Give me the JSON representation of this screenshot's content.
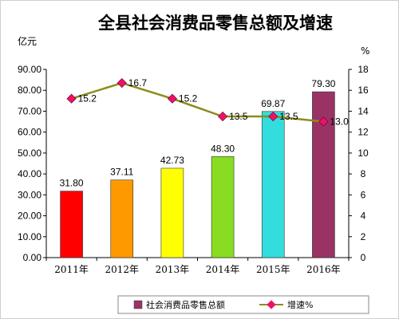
{
  "chart_data": {
    "type": "bar",
    "title": "全县社会消费品零售总额及增速",
    "categories": [
      "2011年",
      "2012年",
      "2013年",
      "2014年",
      "2015年",
      "2016年"
    ],
    "series": [
      {
        "name": "社会消费品零售总额",
        "type": "bar",
        "axis": "left",
        "values": [
          31.8,
          37.11,
          42.73,
          48.3,
          69.87,
          79.3
        ],
        "labels": [
          "31.80",
          "37.11",
          "42.73",
          "48.30",
          "69.87",
          "79.30"
        ],
        "colors": [
          "#ff0000",
          "#ff9900",
          "#ffff00",
          "#88dd22",
          "#33dddd",
          "#993366"
        ],
        "legend_color": "#993366"
      },
      {
        "name": "增速%",
        "type": "line",
        "axis": "right",
        "values": [
          15.2,
          16.7,
          15.2,
          13.5,
          13.5,
          13.0
        ],
        "labels": [
          "15.2",
          "16.7",
          "15.2",
          "13.5",
          "13.5",
          "13.0"
        ],
        "line_color": "#8c8c1a",
        "marker_color": "#ee1166"
      }
    ],
    "y_left": {
      "unit": "亿元",
      "ylim": [
        0,
        90
      ],
      "ticks": [
        "0.00",
        "10.00",
        "20.00",
        "30.00",
        "40.00",
        "50.00",
        "60.00",
        "70.00",
        "80.00",
        "90.00"
      ]
    },
    "y_right": {
      "unit": "%",
      "ylim": [
        0,
        18
      ],
      "ticks": [
        "0",
        "2",
        "4",
        "6",
        "8",
        "10",
        "12",
        "14",
        "16",
        "18"
      ]
    },
    "grid": false,
    "legend_position": "bottom-right"
  }
}
